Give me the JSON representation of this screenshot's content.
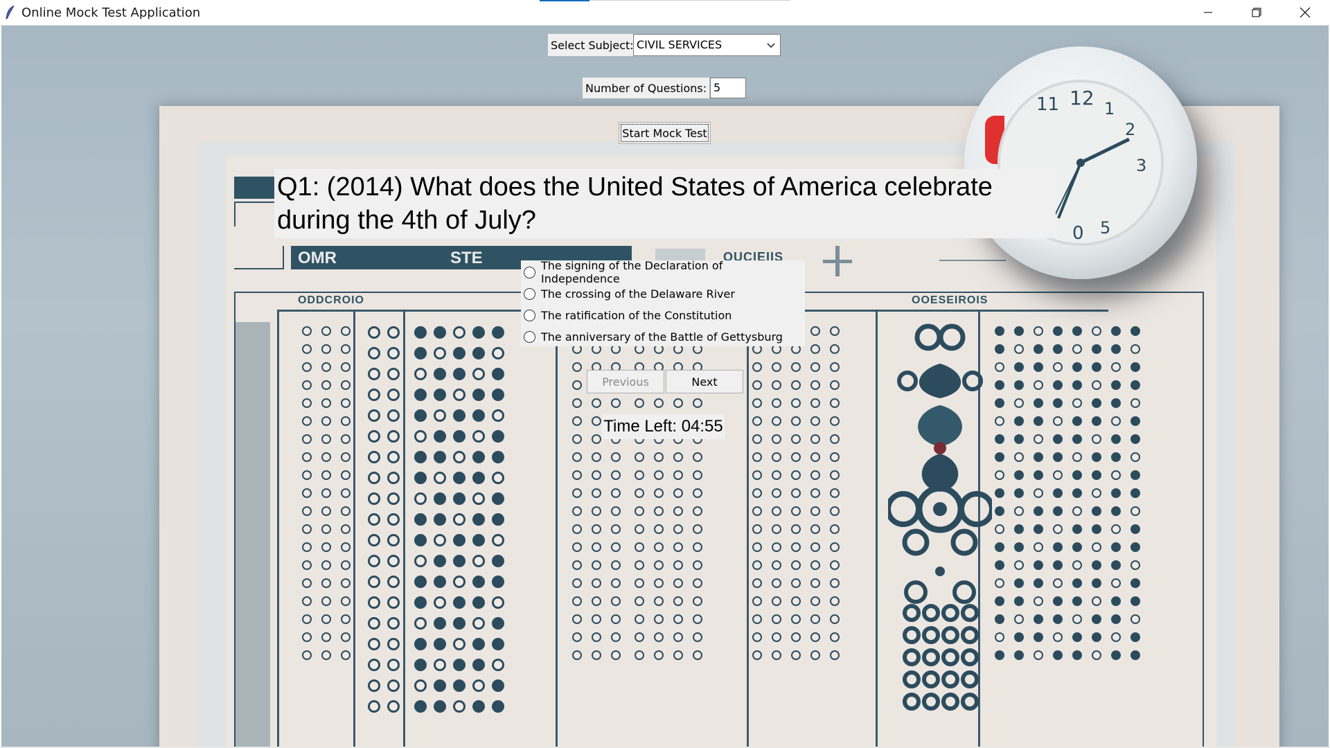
{
  "window": {
    "title": "Online Mock Test Application",
    "controls": {
      "minimize": "minimize-icon",
      "maximize": "restore-icon",
      "close": "close-icon"
    }
  },
  "form": {
    "subject_label": "Select Subject:",
    "subject_value": "CIVIL SERVICES",
    "questions_label": "Number of Questions:",
    "questions_value": "5",
    "start_label": "Start Mock Test"
  },
  "quiz": {
    "question": "Q1: (2014) What does the United States of America celebrate during the 4th of July?",
    "options": [
      {
        "label": "The signing of the Declaration of Independence",
        "selected": false
      },
      {
        "label": "The crossing of the Delaware River",
        "selected": false
      },
      {
        "label": "The ratification of the Constitution",
        "selected": false
      },
      {
        "label": "The anniversary of the Battle of Gettysburg",
        "selected": false
      }
    ],
    "previous_label": "Previous",
    "previous_enabled": false,
    "next_label": "Next",
    "timer": "Time Left: 04:55"
  },
  "background_art": {
    "header_left": "OMR",
    "header_right": "STE",
    "section_left": "ODDCROIO",
    "section_right": "OOESEIROIS",
    "top_right": "OUCIEIIS",
    "clock_numbers": [
      "11",
      "12",
      "1",
      "2",
      "3",
      "0",
      "5"
    ]
  },
  "colors": {
    "window_bg": "#f0f0f0",
    "accent": "#0f6cbd",
    "sheet_ink": "#2f5363",
    "clock_red": "#e03131"
  }
}
